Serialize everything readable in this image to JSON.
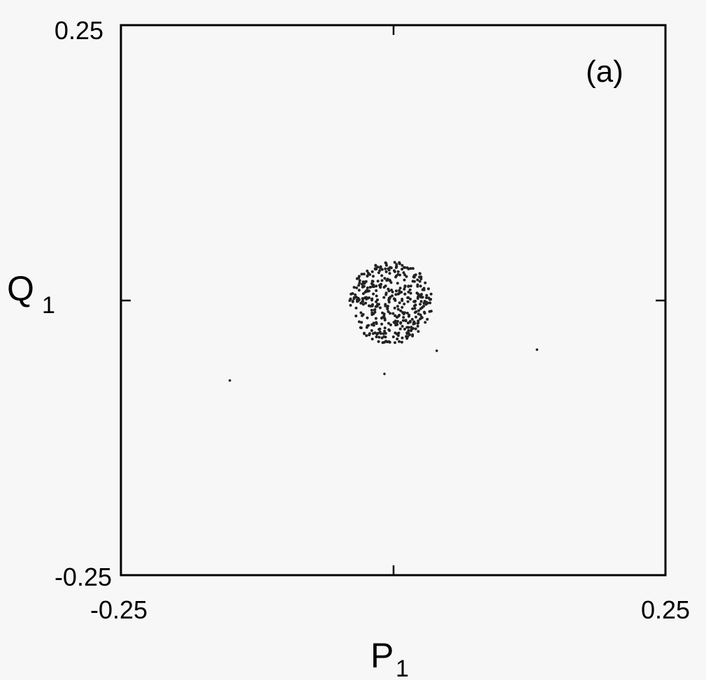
{
  "chart_data": {
    "type": "scatter",
    "panel_label": "(a)",
    "xlabel": {
      "main": "P",
      "sub": "1"
    },
    "ylabel": {
      "main": "Q",
      "sub": "1"
    },
    "xlim": [
      -0.25,
      0.25
    ],
    "ylim": [
      -0.25,
      0.25
    ],
    "x_tick_labels": {
      "min": "-0.25",
      "max": "0.25"
    },
    "y_tick_labels": {
      "min": "-0.25",
      "max": "0.25"
    },
    "grid": false,
    "point_color": "#222222",
    "cluster": {
      "center": [
        -0.002,
        -0.002
      ],
      "radius": 0.038,
      "approx_points": 420
    },
    "outliers": [
      [
        -0.15,
        -0.073
      ],
      [
        0.04,
        -0.046
      ],
      [
        0.132,
        -0.045
      ],
      [
        -0.008,
        -0.067
      ]
    ]
  }
}
